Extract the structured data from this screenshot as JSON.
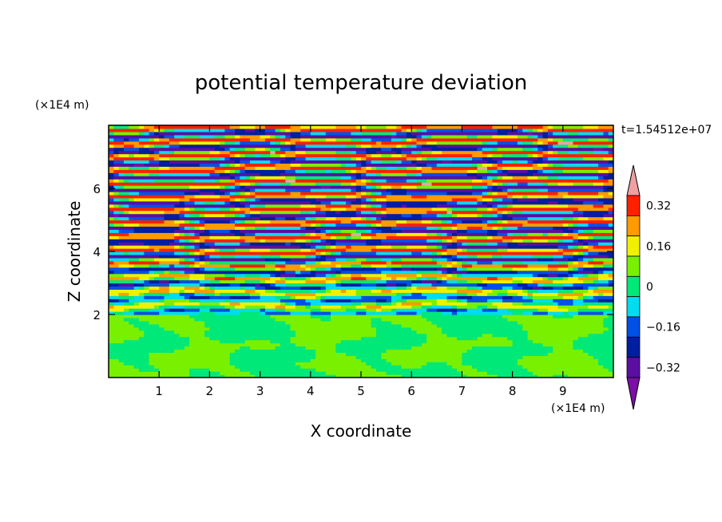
{
  "chart_data": {
    "type": "heatmap",
    "title": "potential temperature deviation",
    "xlabel": "X coordinate",
    "ylabel": "Z coordinate",
    "x_unit": "(×1E4 m)",
    "y_unit": "(×1E4 m)",
    "time_label": "t=1.54512e+07",
    "xlim": [
      0,
      10
    ],
    "ylim": [
      0,
      8
    ],
    "x_ticks": [
      1,
      2,
      3,
      4,
      5,
      6,
      7,
      8,
      9
    ],
    "y_ticks": [
      2,
      4,
      6
    ],
    "colorbar": {
      "levels": [
        -0.4,
        -0.32,
        -0.24,
        -0.16,
        -0.08,
        0,
        0.08,
        0.16,
        0.24,
        0.32,
        0.4
      ],
      "tick_labels": [
        "0.32",
        "0.16",
        "0",
        "−0.16",
        "−0.32"
      ],
      "tick_values": [
        0.32,
        0.16,
        0,
        -0.16,
        -0.32
      ],
      "colors": [
        "#7b0fa6",
        "#5a0fa0",
        "#001ea0",
        "#0050e6",
        "#00dcf0",
        "#00e878",
        "#78f000",
        "#f0f000",
        "#ff9a00",
        "#ff2000",
        "#f0a0a0"
      ]
    },
    "field_description_rows": [
      {
        "z": 0.5,
        "value": 0.04
      },
      {
        "z": 1.5,
        "value": 0.0
      },
      {
        "z": 2.5,
        "value": -0.2
      },
      {
        "z": 3.5,
        "value": 0.2
      },
      {
        "z": 4.5,
        "value": 0.3
      },
      {
        "z": 5.5,
        "value": -0.35
      },
      {
        "z": 6.5,
        "value": 0.38
      },
      {
        "z": 7.5,
        "value": -0.38
      }
    ]
  }
}
